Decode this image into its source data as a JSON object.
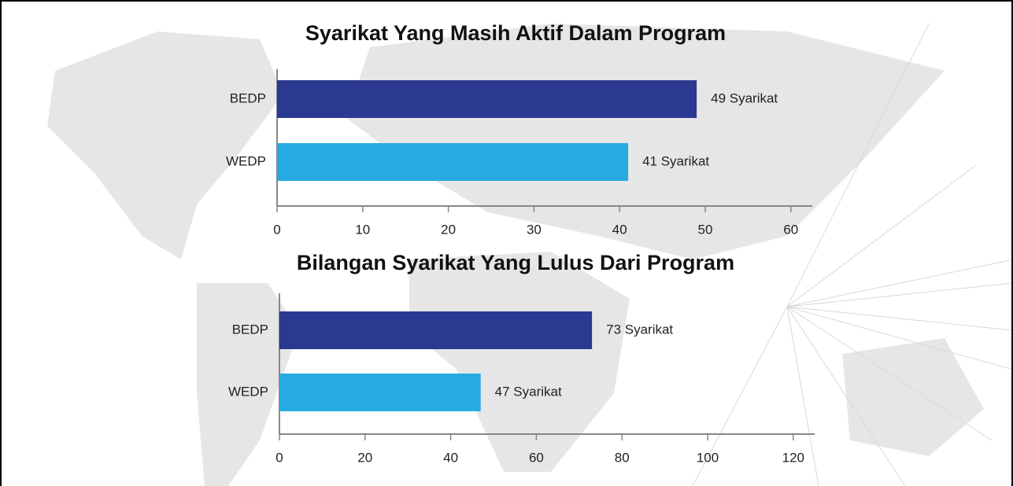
{
  "chart_data": [
    {
      "type": "barh",
      "title": "Syarikat Yang Masih Aktif Dalam Program",
      "categories": [
        "BEDP",
        "WEDP"
      ],
      "values": [
        49,
        41
      ],
      "value_labels": [
        "49 Syarikat",
        "41 Syarikat"
      ],
      "colors": [
        "#2b3990",
        "#27aae1"
      ],
      "xlim": [
        0,
        62.5
      ],
      "xticks": [
        0,
        10,
        20,
        30,
        40,
        50,
        60
      ]
    },
    {
      "type": "barh",
      "title": "Bilangan Syarikat Yang Lulus Dari Program",
      "categories": [
        "BEDP",
        "WEDP"
      ],
      "values": [
        73,
        47
      ],
      "value_labels": [
        "73 Syarikat",
        "47 Syarikat"
      ],
      "colors": [
        "#2b3990",
        "#27aae1"
      ],
      "xlim": [
        0,
        125
      ],
      "xticks": [
        0,
        20,
        40,
        60,
        80,
        100,
        120
      ]
    }
  ]
}
